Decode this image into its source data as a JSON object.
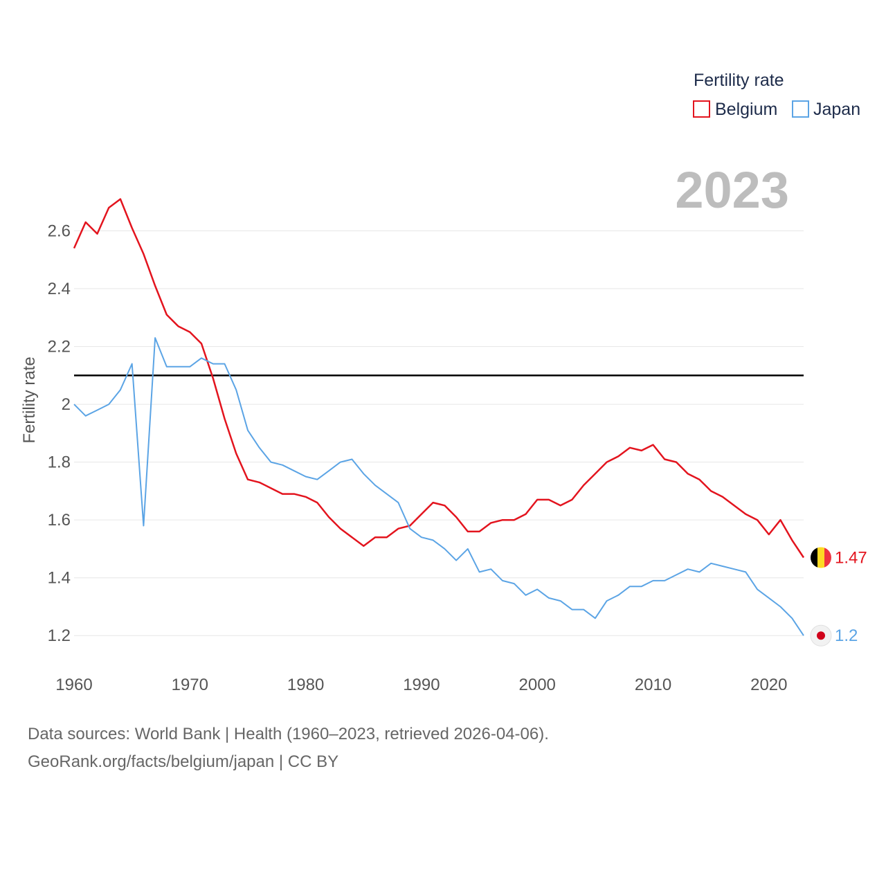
{
  "chart_data": {
    "type": "line",
    "title": "",
    "xlabel": "",
    "ylabel": "Fertility rate",
    "xlim": [
      1960,
      2023
    ],
    "ylim": [
      1.1,
      2.8
    ],
    "xticks": [
      1960,
      1970,
      1980,
      1990,
      2000,
      2010,
      2020
    ],
    "yticks": [
      1.2,
      1.4,
      1.6,
      1.8,
      2.0,
      2.2,
      2.4,
      2.6
    ],
    "ytick_labels": [
      "1.2",
      "1.4",
      "1.6",
      "1.8",
      "2",
      "2.2",
      "2.4",
      "2.6"
    ],
    "grid": true,
    "reference_line": {
      "value": 2.1,
      "color": "#000000"
    },
    "legend": {
      "title": "Fertility rate",
      "position": "top-right"
    },
    "year_label": "2023",
    "x": [
      1960,
      1961,
      1962,
      1963,
      1964,
      1965,
      1966,
      1967,
      1968,
      1969,
      1970,
      1971,
      1972,
      1973,
      1974,
      1975,
      1976,
      1977,
      1978,
      1979,
      1980,
      1981,
      1982,
      1983,
      1984,
      1985,
      1986,
      1987,
      1988,
      1989,
      1990,
      1991,
      1992,
      1993,
      1994,
      1995,
      1996,
      1997,
      1998,
      1999,
      2000,
      2001,
      2002,
      2003,
      2004,
      2005,
      2006,
      2007,
      2008,
      2009,
      2010,
      2011,
      2012,
      2013,
      2014,
      2015,
      2016,
      2017,
      2018,
      2019,
      2020,
      2021,
      2022,
      2023
    ],
    "series": [
      {
        "name": "Belgium",
        "color": "#e3141e",
        "end_label": "1.47",
        "flag": "belgium-flag",
        "values": [
          2.54,
          2.63,
          2.59,
          2.68,
          2.71,
          2.61,
          2.52,
          2.41,
          2.31,
          2.27,
          2.25,
          2.21,
          2.09,
          1.95,
          1.83,
          1.74,
          1.73,
          1.71,
          1.69,
          1.69,
          1.68,
          1.66,
          1.61,
          1.57,
          1.54,
          1.51,
          1.54,
          1.54,
          1.57,
          1.58,
          1.62,
          1.66,
          1.65,
          1.61,
          1.56,
          1.56,
          1.59,
          1.6,
          1.6,
          1.62,
          1.67,
          1.67,
          1.65,
          1.67,
          1.72,
          1.76,
          1.8,
          1.82,
          1.85,
          1.84,
          1.86,
          1.81,
          1.8,
          1.76,
          1.74,
          1.7,
          1.68,
          1.65,
          1.62,
          1.6,
          1.55,
          1.6,
          1.53,
          1.47
        ]
      },
      {
        "name": "Japan",
        "color": "#5ba4e5",
        "end_label": "1.2",
        "flag": "japan-flag",
        "values": [
          2.0,
          1.96,
          1.98,
          2.0,
          2.05,
          2.14,
          1.58,
          2.23,
          2.13,
          2.13,
          2.13,
          2.16,
          2.14,
          2.14,
          2.05,
          1.91,
          1.85,
          1.8,
          1.79,
          1.77,
          1.75,
          1.74,
          1.77,
          1.8,
          1.81,
          1.76,
          1.72,
          1.69,
          1.66,
          1.57,
          1.54,
          1.53,
          1.5,
          1.46,
          1.5,
          1.42,
          1.43,
          1.39,
          1.38,
          1.34,
          1.36,
          1.33,
          1.32,
          1.29,
          1.29,
          1.26,
          1.32,
          1.34,
          1.37,
          1.37,
          1.39,
          1.39,
          1.41,
          1.43,
          1.42,
          1.45,
          1.44,
          1.43,
          1.42,
          1.36,
          1.33,
          1.3,
          1.26,
          1.2
        ]
      }
    ]
  },
  "footer": {
    "line1": "Data sources: World Bank | Health (1960–2023, retrieved 2026-04-06).",
    "line2": "GeoRank.org/facts/belgium/japan | CC BY"
  }
}
